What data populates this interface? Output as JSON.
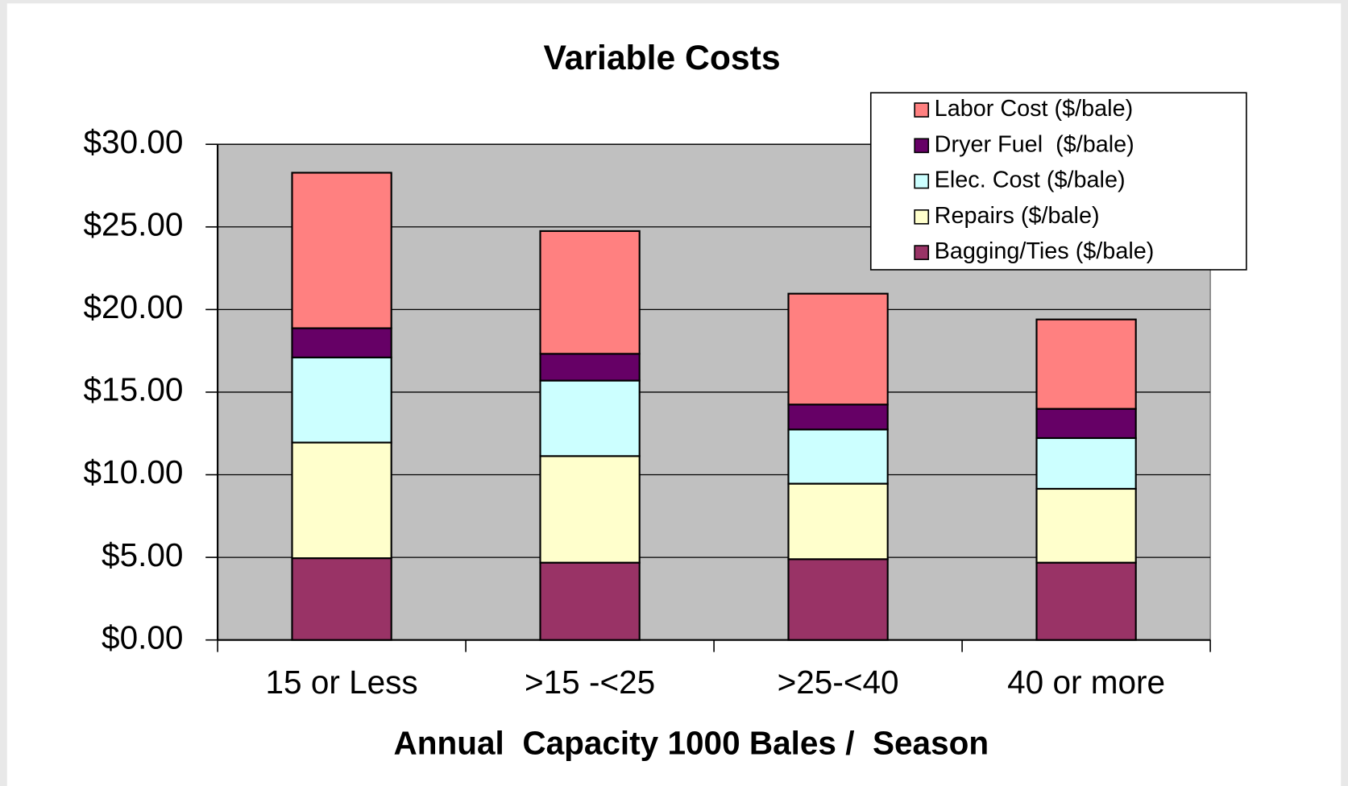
{
  "chart_data": {
    "type": "stacked_bar",
    "title": "Variable Costs",
    "x_label": "Annual  Capacity 1000 Bales /  Season",
    "categories": [
      "15 or Less",
      ">15 -<25",
      ">25-<40",
      "40 or more"
    ],
    "series": [
      {
        "name": "Bagging/Ties ($/bale)",
        "color": "#993366",
        "values": [
          4.95,
          4.68,
          4.89,
          4.68
        ]
      },
      {
        "name": "Repairs ($/bale)",
        "color": "#ffffcc",
        "values": [
          7.0,
          6.45,
          4.57,
          4.47
        ]
      },
      {
        "name": "Elec. Cost ($/bale)",
        "color": "#ccffff",
        "values": [
          5.15,
          4.57,
          3.28,
          3.07
        ]
      },
      {
        "name": "Dryer Fuel  ($/bale)",
        "color": "#660066",
        "values": [
          1.77,
          1.62,
          1.51,
          1.77
        ]
      },
      {
        "name": "Labor Cost ($/bale)",
        "color": "#ff8080",
        "values": [
          9.41,
          7.43,
          6.71,
          5.41
        ]
      }
    ],
    "ylim": [
      0,
      30
    ],
    "yticks": [
      {
        "value": 0,
        "label": "$0.00"
      },
      {
        "value": 5,
        "label": "$5.00"
      },
      {
        "value": 10,
        "label": "$10.00"
      },
      {
        "value": 15,
        "label": "$15.00"
      },
      {
        "value": 20,
        "label": "$20.00"
      },
      {
        "value": 25,
        "label": "$25.00"
      },
      {
        "value": 30,
        "label": "$30.00"
      }
    ],
    "grid": true,
    "legend": "upper right",
    "plot_background": "#c0c0c0"
  }
}
